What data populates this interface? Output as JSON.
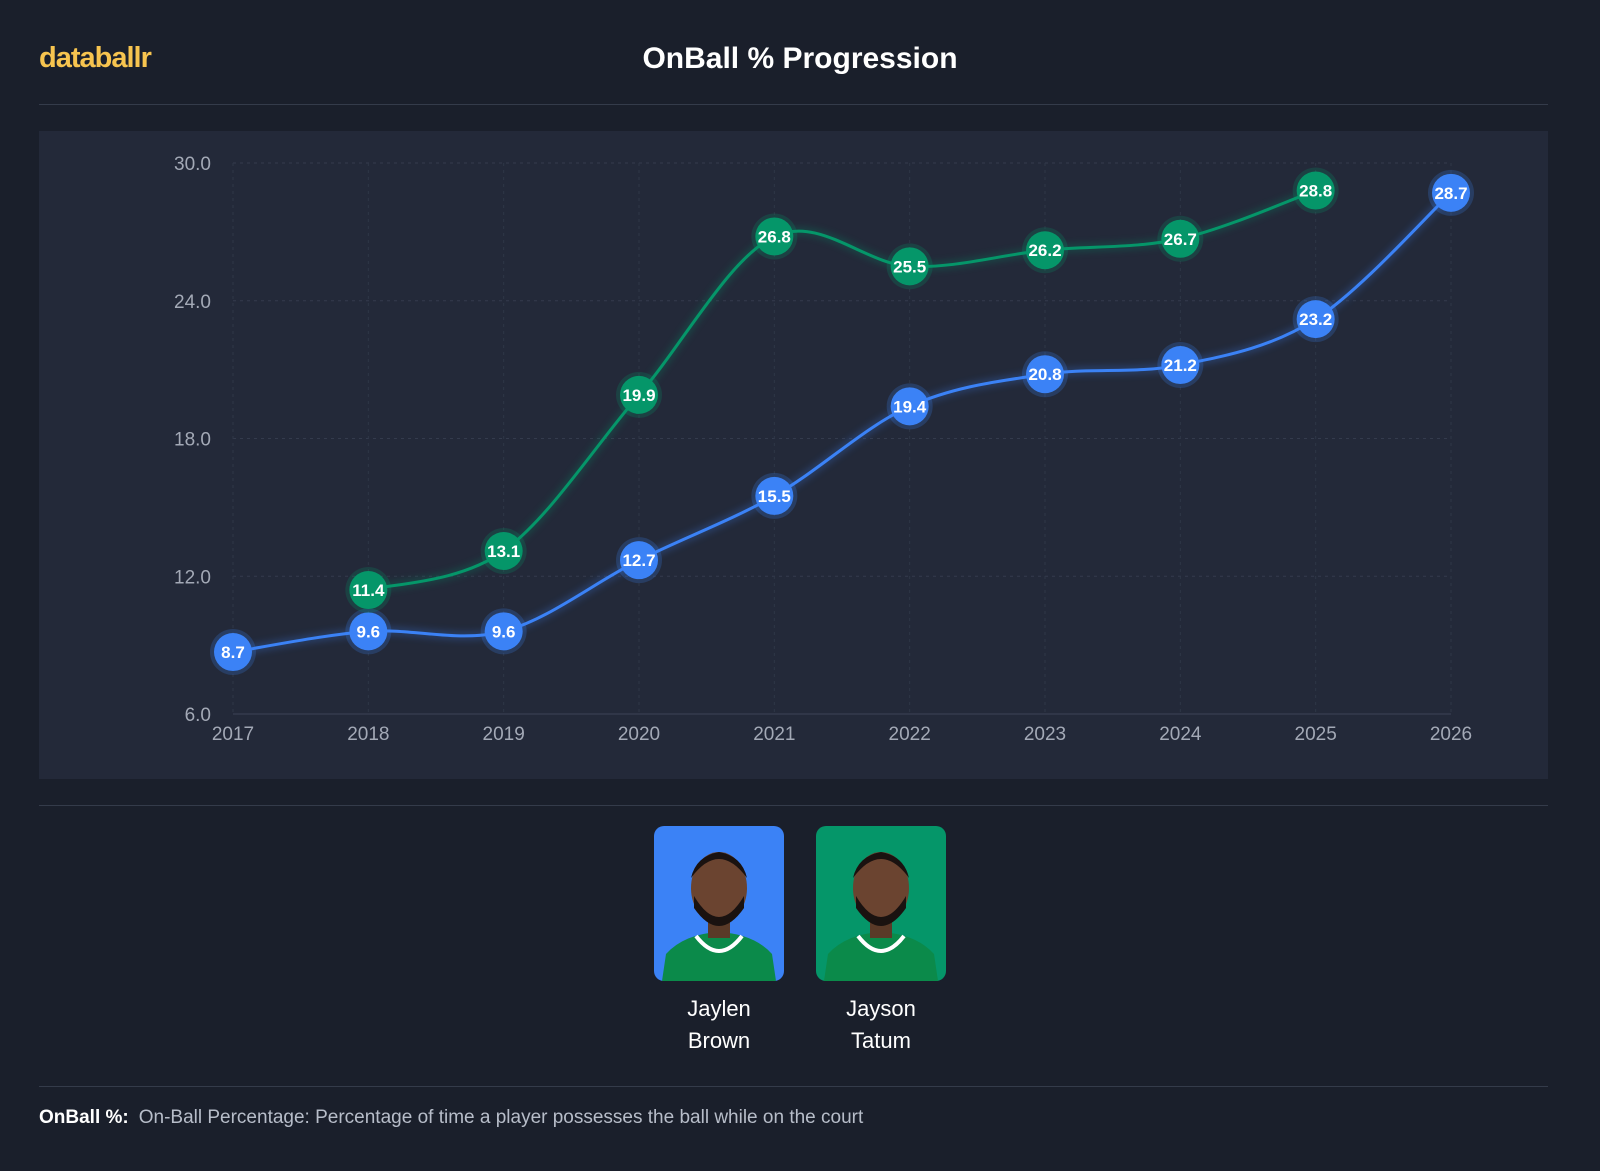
{
  "brand": "databallr",
  "chart_data": {
    "type": "line",
    "title": "OnBall % Progression",
    "categories": [
      "2017",
      "2018",
      "2019",
      "2020",
      "2021",
      "2022",
      "2023",
      "2024",
      "2025",
      "2026"
    ],
    "series": [
      {
        "name": "Jaylen Brown",
        "color": "#3b82f6",
        "values": [
          8.7,
          9.6,
          9.6,
          12.7,
          15.5,
          19.4,
          20.8,
          21.2,
          23.2,
          28.7
        ]
      },
      {
        "name": "Jayson Tatum",
        "color": "#059669",
        "values": [
          null,
          11.4,
          13.1,
          19.9,
          26.8,
          25.5,
          26.2,
          26.7,
          28.8,
          null
        ]
      }
    ],
    "ylim": [
      6,
      30
    ],
    "yticks": [
      {
        "value": 6,
        "label": "6.0"
      },
      {
        "value": 12,
        "label": "12.0"
      },
      {
        "value": 18,
        "label": "18.0"
      },
      {
        "value": 24,
        "label": "24.0"
      },
      {
        "value": 30,
        "label": "30.0"
      }
    ],
    "grid": true,
    "smooth": true
  },
  "footer": {
    "term": "OnBall %:",
    "definition": "On-Ball Percentage: Percentage of time a player possesses the ball while on the court"
  }
}
